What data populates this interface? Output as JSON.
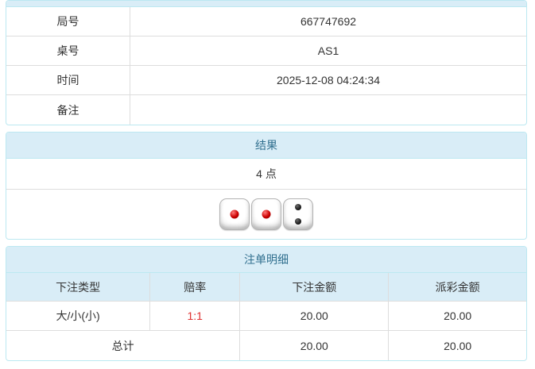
{
  "info_table": {
    "rows": [
      {
        "label": "局号",
        "value": "667747692"
      },
      {
        "label": "桌号",
        "value": "AS1"
      },
      {
        "label": "时间",
        "value": "2025-12-08 04:24:34"
      },
      {
        "label": "备注",
        "value": ""
      }
    ]
  },
  "result_panel": {
    "title": "结果",
    "points": "4 点",
    "dice": [
      {
        "value": 1,
        "pip_color": "red"
      },
      {
        "value": 1,
        "pip_color": "red"
      },
      {
        "value": 2,
        "pip_color": "black"
      }
    ]
  },
  "bets_panel": {
    "title": "注单明细",
    "columns": [
      "下注类型",
      "赔率",
      "下注金额",
      "派彩金额"
    ],
    "rows": [
      {
        "type": "大/小(小)",
        "odds": "1:1",
        "bet": "20.00",
        "payout": "20.00"
      }
    ],
    "total": {
      "label": "总计",
      "bet": "20.00",
      "payout": "20.00"
    }
  },
  "colors": {
    "heading_bg": "#d9edf7",
    "heading_text": "#31708f",
    "panel_border": "#bce8f1",
    "row_border": "#dddddd",
    "odds_red": "#e03131",
    "body_text": "#333333"
  }
}
